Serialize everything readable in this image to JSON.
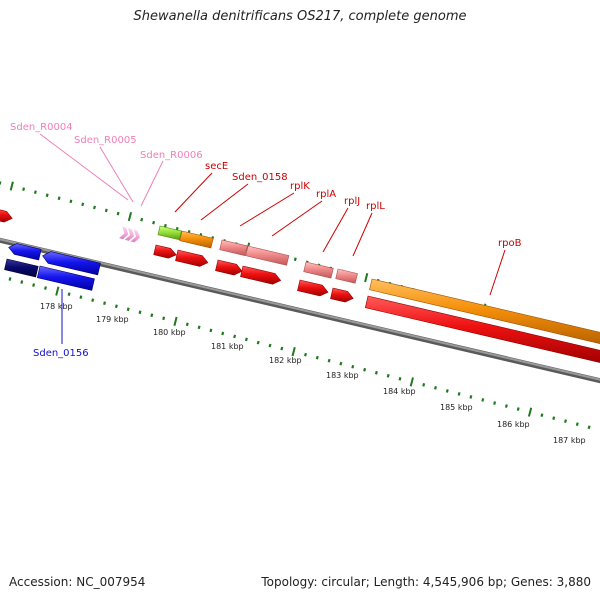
{
  "title": "Shewanella denitrificans OS217, complete genome",
  "footer": {
    "accession": "Accession: NC_007954",
    "summary": "Topology: circular; Length: 4,545,906 bp; Genes: 3,880"
  },
  "colors": {
    "backbone": "#7a7a7a",
    "tick": "#1f7a1f",
    "cds_red": "#ee1111",
    "cds_orange": "#f5900a",
    "cds_pink": "#f08a8a",
    "cds_lime": "#99e23a",
    "cds_blue": "#1515ee",
    "cds_navy": "#0a0a6e",
    "rna_pink": "#f3a6d6",
    "label_red": "#cc0000",
    "label_pink": "#ee80b8",
    "label_blue": "#1010cc",
    "ruler_text": "#222222"
  },
  "scale_labels": [
    "178 kbp",
    "179 kbp",
    "180 kbp",
    "181 kbp",
    "182 kbp",
    "183 kbp",
    "184 kbp",
    "185 kbp",
    "186 kbp",
    "187 kbp"
  ],
  "gene_labels": [
    {
      "text": "Sden_R0004",
      "color": "label_pink"
    },
    {
      "text": "Sden_R0005",
      "color": "label_pink"
    },
    {
      "text": "Sden_R0006",
      "color": "label_pink"
    },
    {
      "text": "secE",
      "color": "label_red"
    },
    {
      "text": "Sden_0158",
      "color": "label_red"
    },
    {
      "text": "rplK",
      "color": "label_red"
    },
    {
      "text": "rplA",
      "color": "label_red"
    },
    {
      "text": "rplJ",
      "color": "label_red"
    },
    {
      "text": "rplL",
      "color": "label_red"
    },
    {
      "text": "rpoB",
      "color": "label_red"
    },
    {
      "text": "Sden_0156",
      "color": "label_blue"
    }
  ]
}
